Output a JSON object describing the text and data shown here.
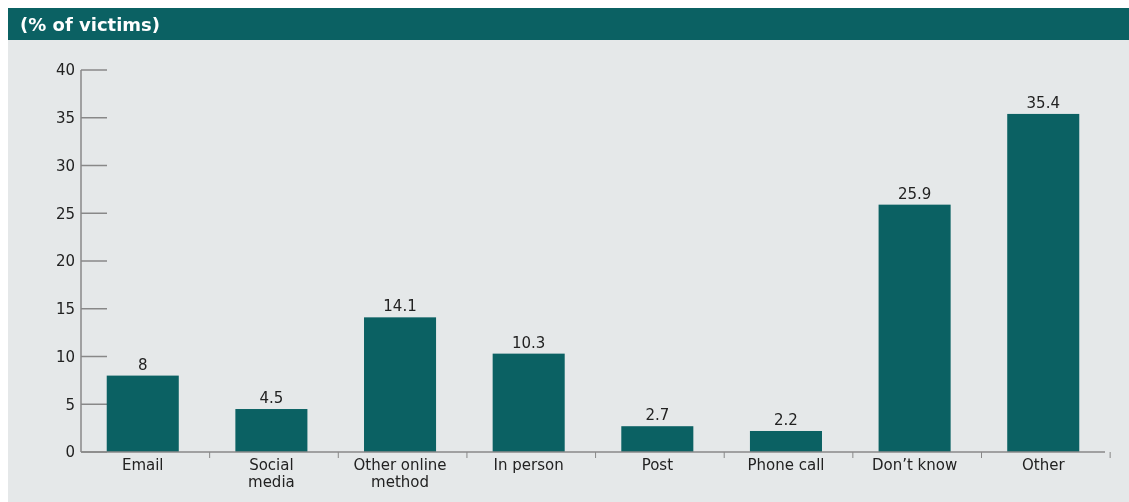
{
  "chart_data": {
    "type": "bar",
    "title": "(% of victims)",
    "categories": [
      "Email",
      "Social media",
      "Other online method",
      "In person",
      "Post",
      "Phone call",
      "Don’t know",
      "Other"
    ],
    "values": [
      8,
      4.5,
      14.1,
      10.3,
      2.7,
      2.2,
      25.9,
      35.4
    ],
    "color": "#0b6163",
    "ylim": [
      0,
      40
    ],
    "yticks": [
      0,
      5,
      10,
      15,
      20,
      25,
      30,
      35,
      40
    ],
    "data_labels": true,
    "grid": false
  }
}
